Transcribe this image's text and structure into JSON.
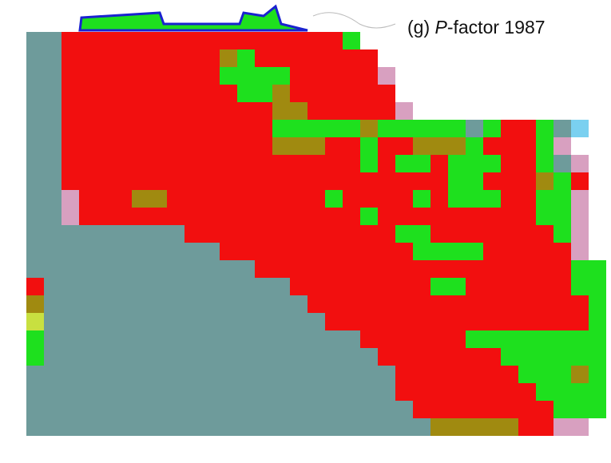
{
  "panel": {
    "label": "(g) ",
    "variable": "P",
    "suffix": "-factor  1987"
  }
}
